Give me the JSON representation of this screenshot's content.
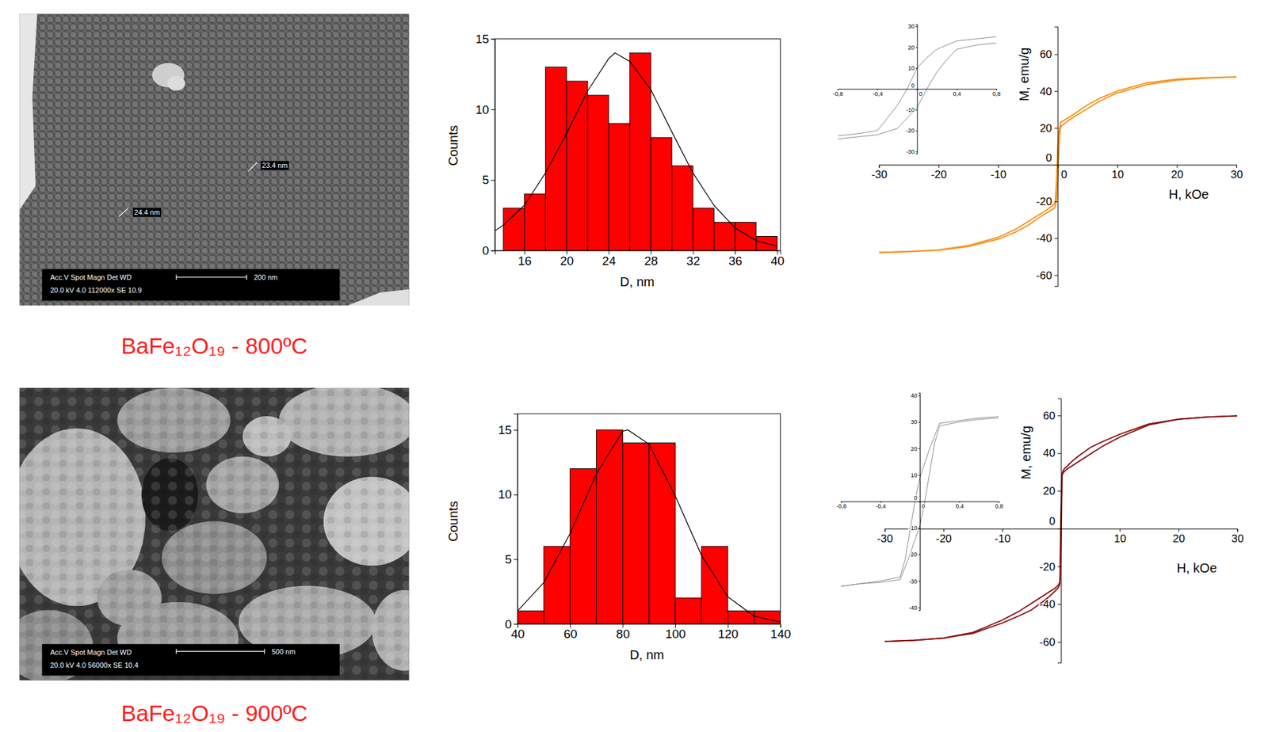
{
  "chart_data": [
    {
      "type": "image",
      "title": "BaFe₁₂O₁₉ - 800ºC",
      "annotations": [
        "Acc.V Spot Magn Det WD",
        "20.0 kV 4.0 112000x SE 10.9",
        "200 nm",
        "23.4 nm",
        "24.4 nm"
      ]
    },
    {
      "type": "histogram",
      "x_label": "D, nm",
      "y_label": "Counts",
      "bins": [
        14,
        16,
        18,
        20,
        22,
        24,
        26,
        28,
        30,
        32,
        34,
        36,
        38,
        40
      ],
      "values": [
        3,
        4,
        13,
        12,
        11,
        9,
        14,
        8,
        6,
        3,
        2,
        2,
        1
      ],
      "color": "#ff0000",
      "xlim": [
        13.2,
        40.3
      ],
      "xticks": [
        16,
        20,
        24,
        28,
        32,
        36,
        40
      ],
      "ylim": [
        0,
        15
      ],
      "yticks": [
        0,
        5,
        10,
        15
      ],
      "series": [
        {
          "type": "line",
          "color": "#000000",
          "x": [
            13.2,
            14,
            16,
            18,
            20,
            22,
            24,
            24.6,
            26,
            28,
            30,
            32,
            34,
            36,
            38,
            40
          ],
          "values": [
            1.4,
            1.8,
            3.2,
            5.5,
            8.3,
            11.3,
            13.6,
            14,
            13.4,
            11.4,
            8.4,
            5.5,
            3.2,
            1.6,
            0.7,
            0.3
          ]
        }
      ]
    },
    {
      "type": "line",
      "x_label": "H, kOe",
      "y_label": "M, emu/g",
      "xlim": [
        -30,
        30
      ],
      "xticks": [
        -30,
        -20,
        -10,
        0,
        10,
        20,
        30
      ],
      "ylim": [
        -66,
        75
      ],
      "yticks": [
        -60,
        -40,
        -20,
        0,
        20,
        40,
        60
      ],
      "series": [
        {
          "color": "#f7931e",
          "x": [
            30,
            25,
            20,
            15,
            10,
            7,
            5,
            3,
            2,
            1,
            0.5,
            0.2,
            0,
            -0.1,
            -0.2,
            -0.4,
            -0.6,
            -1,
            -2,
            -3,
            -5,
            -7,
            -10,
            -15,
            -20,
            -25,
            -30
          ],
          "values": [
            47.7,
            47.3,
            46.5,
            44.5,
            40,
            36,
            32.5,
            28,
            26,
            24,
            23,
            18,
            10,
            0,
            -8,
            -20,
            -21.5,
            -22.5,
            -25,
            -27,
            -31,
            -35,
            -39.5,
            -44,
            -46.3,
            -47.2,
            -47.7
          ]
        },
        {
          "color": "#f7931e",
          "x": [
            -30,
            -25,
            -20,
            -15,
            -10,
            -7,
            -5,
            -3,
            -2,
            -1,
            -0.5,
            -0.2,
            0,
            0.1,
            0.2,
            0.4,
            0.6,
            1,
            2,
            3,
            5,
            7,
            10,
            15,
            20,
            25,
            30
          ],
          "values": [
            -47.7,
            -47.3,
            -46.5,
            -44.5,
            -40.5,
            -36.5,
            -33,
            -28.5,
            -26.5,
            -24.5,
            -23.5,
            -19,
            -9,
            0,
            8,
            19,
            21,
            22,
            24.5,
            26.5,
            30.5,
            34.5,
            39,
            43.5,
            46,
            47,
            47.7
          ]
        }
      ],
      "inset": {
        "type": "line",
        "xlim": [
          -0.8,
          0.8
        ],
        "xticks": [
          {
            "value": -0.8,
            "label": "-0,8"
          },
          {
            "value": -0.4,
            "label": "-0,4"
          },
          0,
          {
            "value": 0.4,
            "label": "0,4"
          },
          {
            "value": 0.8,
            "label": "0,8"
          }
        ],
        "ylim": [
          -31,
          31
        ],
        "yticks": [
          -30,
          -20,
          -10,
          0,
          10,
          20,
          30
        ],
        "series": [
          {
            "color": "#888888",
            "x": [
              0.8,
              0.6,
              0.4,
              0.2,
              0.1,
              0,
              -0.1,
              -0.2,
              -0.3,
              -0.4,
              -0.6,
              -0.8
            ],
            "values": [
              25,
              24,
              23,
              19,
              15,
              10,
              0,
              -8,
              -14,
              -20,
              -21.5,
              -22.5
            ]
          },
          {
            "color": "#888888",
            "x": [
              -0.8,
              -0.6,
              -0.4,
              -0.2,
              -0.1,
              0,
              0.1,
              0.2,
              0.3,
              0.4,
              0.6,
              0.8
            ],
            "values": [
              -24,
              -23,
              -22,
              -19,
              -14,
              -9,
              0,
              8,
              14,
              19,
              21,
              22
            ]
          }
        ]
      }
    },
    {
      "type": "image",
      "title": "BaFe₁₂O₁₉ - 900ºC",
      "annotations": [
        "Acc.V Spot Magn Det WD",
        "20.0 kV 4.0 56000x SE 10.4",
        "500 nm"
      ]
    },
    {
      "type": "histogram",
      "x_label": "D, nm",
      "y_label": "Counts",
      "bins": [
        40,
        50,
        60,
        70,
        80,
        90,
        100,
        110,
        120,
        130,
        140
      ],
      "values": [
        1,
        6,
        12,
        15,
        14,
        14,
        2,
        6,
        1,
        1
      ],
      "color": "#ff0000",
      "xlim": [
        40,
        140
      ],
      "xticks": [
        40,
        60,
        80,
        100,
        120,
        140
      ],
      "ylim": [
        0,
        16.25
      ],
      "yticks": [
        0,
        5,
        10,
        15
      ],
      "series": [
        {
          "type": "line",
          "color": "#000000",
          "x": [
            40,
            50,
            60,
            70,
            80,
            82,
            90,
            100,
            110,
            120,
            130,
            140
          ],
          "values": [
            1.0,
            3.2,
            7.0,
            11.6,
            14.9,
            15,
            13.9,
            9.9,
            5.3,
            2.1,
            0.6,
            0.15
          ]
        }
      ]
    },
    {
      "type": "line",
      "x_label": "H, kOe",
      "y_label": "M, emu/g",
      "xlim": [
        -30,
        30
      ],
      "xticks": [
        -30,
        -20,
        -10,
        10,
        20,
        30
      ],
      "ylim": [
        -71,
        69
      ],
      "yticks": [
        -60,
        -40,
        -20,
        0,
        20,
        40,
        60
      ],
      "series": [
        {
          "color": "#8b1515",
          "x": [
            30,
            25,
            20,
            15,
            10,
            7,
            5,
            3,
            2,
            1,
            0.5,
            0.2,
            0.1,
            0,
            -0.05,
            -0.15,
            -0.2,
            -0.5,
            -1,
            -2,
            -3,
            -5,
            -7,
            -10,
            -15,
            -20,
            -25,
            -30
          ],
          "values": [
            59.8,
            59.2,
            58,
            55.5,
            50,
            46,
            43,
            38.5,
            36,
            33,
            31.5,
            29.5,
            20,
            9,
            0,
            -22,
            -28.5,
            -30,
            -31.5,
            -33.5,
            -35.5,
            -39.5,
            -43.5,
            -48.5,
            -55,
            -58,
            -59.2,
            -59.8
          ]
        },
        {
          "color": "#8b1515",
          "x": [
            -30,
            -25,
            -20,
            -15,
            -10,
            -7,
            -5,
            -3,
            -2,
            -1,
            -0.5,
            -0.2,
            -0.1,
            0,
            0.05,
            0.15,
            0.2,
            0.5,
            1,
            2,
            3,
            5,
            7,
            10,
            15,
            20,
            25,
            30
          ],
          "values": [
            -59.8,
            -59.2,
            -58,
            -55.5,
            -50,
            -46,
            -43,
            -38.5,
            -36,
            -33,
            -31.5,
            -29.5,
            -20,
            -9,
            0,
            22,
            28.5,
            30,
            31.5,
            33.5,
            35.5,
            39.5,
            43.5,
            48.5,
            55,
            58,
            59.2,
            59.8
          ]
        }
      ],
      "inset": {
        "type": "line",
        "xlim": [
          -0.8,
          0.8
        ],
        "xticks": [
          {
            "value": -0.8,
            "label": "-0,8"
          },
          {
            "value": -0.4,
            "label": "-0,4"
          },
          0,
          {
            "value": 0.4,
            "label": "0,4"
          },
          {
            "value": 0.8,
            "label": "0,8"
          }
        ],
        "ylim": [
          -41,
          41
        ],
        "yticks": [
          -40,
          -30,
          -20,
          -10,
          0,
          10,
          20,
          30,
          40
        ],
        "series": [
          {
            "color": "#888888",
            "x": [
              0.8,
              0.6,
              0.4,
              0.2,
              0.1,
              0,
              -0.05,
              -0.1,
              -0.15,
              -0.2,
              -0.4,
              -0.6,
              -0.8
            ],
            "values": [
              32,
              31.5,
              30.5,
              29.5,
              20,
              9,
              0,
              -11,
              -22,
              -28.5,
              -30,
              -31,
              -32
            ]
          },
          {
            "color": "#888888",
            "x": [
              -0.8,
              -0.6,
              -0.4,
              -0.2,
              -0.1,
              0,
              0.05,
              0.1,
              0.15,
              0.2,
              0.4,
              0.6,
              0.8
            ],
            "values": [
              -32,
              -31,
              -30.5,
              -29.5,
              -20,
              -9,
              0,
              11,
              22,
              28.5,
              30,
              31,
              31.5
            ]
          }
        ]
      }
    }
  ]
}
